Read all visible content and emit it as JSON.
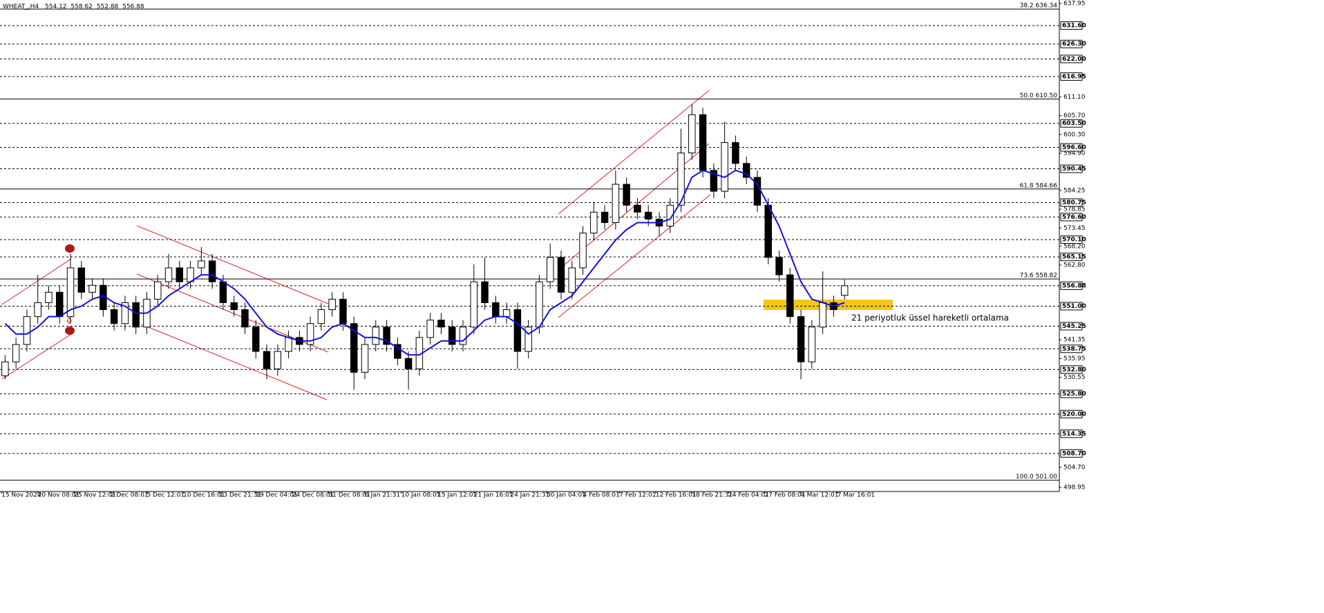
{
  "chart_data": {
    "type": "candlestick",
    "symbol": "WHEAT_,H4",
    "x": [
      1,
      4,
      7,
      10,
      13,
      16,
      19,
      22,
      25,
      28,
      31,
      34,
      37,
      40,
      43,
      46,
      49,
      52,
      55,
      58,
      61,
      64,
      67,
      70,
      73,
      76,
      79,
      82,
      85,
      88,
      91,
      94,
      97,
      100,
      103,
      106,
      109,
      112,
      115,
      118,
      121,
      124,
      127,
      130,
      133,
      136,
      139,
      142,
      145,
      148,
      151,
      154,
      157,
      160,
      163,
      166,
      169,
      172,
      175,
      178,
      181,
      184,
      187,
      190,
      193,
      196,
      199,
      202,
      205,
      208,
      211,
      214,
      217,
      220,
      223,
      226,
      229,
      232
    ],
    "open": [
      531,
      535,
      540,
      548,
      552,
      555,
      548,
      562,
      555,
      557,
      550,
      546,
      552,
      545,
      553,
      558,
      562,
      558,
      562,
      564,
      558,
      552,
      550,
      545,
      538,
      533,
      538,
      542,
      540,
      546,
      550,
      553,
      546,
      532,
      540,
      545,
      540,
      536,
      533,
      542,
      547,
      545,
      540,
      545,
      558,
      552,
      548,
      550,
      538,
      545,
      558,
      565,
      555,
      562,
      572,
      578,
      575,
      586,
      580,
      578,
      576,
      574,
      580,
      595,
      606,
      590,
      584,
      598,
      592,
      588,
      580,
      565,
      560,
      548,
      535,
      545,
      552,
      554.12
    ],
    "high": [
      537,
      542,
      550,
      560,
      557,
      557,
      566,
      564,
      559,
      559,
      552,
      554,
      554,
      555,
      560,
      566,
      564,
      564,
      568,
      566,
      560,
      554,
      552,
      547,
      540,
      540,
      544,
      544,
      548,
      552,
      555,
      555,
      548,
      542,
      547,
      547,
      542,
      538,
      544,
      549,
      549,
      547,
      547,
      563,
      565,
      554,
      552,
      552,
      547,
      560,
      569,
      567,
      564,
      574,
      581,
      580,
      590,
      588,
      582,
      580,
      578,
      582,
      602,
      609,
      608,
      592,
      604,
      600,
      594,
      590,
      582,
      567,
      562,
      550,
      547,
      561,
      554,
      558.62
    ],
    "low": [
      530,
      533,
      538,
      546,
      550,
      546,
      546,
      553,
      553,
      548,
      544,
      544,
      543,
      543,
      551,
      556,
      556,
      556,
      560,
      556,
      550,
      548,
      543,
      536,
      530,
      531,
      536,
      538,
      538,
      544,
      548,
      544,
      527,
      530,
      538,
      538,
      534,
      527,
      531,
      540,
      543,
      538,
      538,
      543,
      550,
      546,
      546,
      533,
      536,
      543,
      556,
      553,
      553,
      560,
      570,
      573,
      573,
      578,
      576,
      574,
      571,
      572,
      578,
      593,
      588,
      582,
      582,
      590,
      586,
      578,
      563,
      558,
      546,
      530,
      533,
      543,
      548,
      552.88
    ],
    "close": [
      535,
      540,
      548,
      552,
      555,
      548,
      562,
      555,
      557,
      550,
      546,
      552,
      545,
      553,
      558,
      562,
      558,
      562,
      564,
      558,
      552,
      550,
      545,
      538,
      533,
      538,
      542,
      540,
      546,
      550,
      553,
      546,
      532,
      540,
      545,
      540,
      536,
      533,
      542,
      547,
      545,
      540,
      545,
      558,
      552,
      548,
      550,
      538,
      545,
      558,
      565,
      555,
      562,
      572,
      578,
      575,
      586,
      580,
      578,
      576,
      574,
      580,
      595,
      606,
      590,
      584,
      598,
      592,
      588,
      580,
      565,
      560,
      548,
      535,
      545,
      552,
      550,
      556.88
    ],
    "ema": {
      "color": "#1010e0",
      "values": [
        546,
        543,
        543,
        545,
        548,
        548,
        550,
        551,
        553,
        554,
        552,
        551,
        549,
        549,
        551,
        554,
        556,
        558,
        560,
        560,
        558,
        556,
        553,
        549,
        545,
        543,
        542,
        541,
        541,
        542,
        545,
        546,
        544,
        542,
        542,
        541,
        539,
        537,
        537,
        539,
        541,
        541,
        541,
        544,
        547,
        548,
        548,
        546,
        543,
        545,
        550,
        552,
        554,
        558,
        562,
        566,
        570,
        573,
        575,
        575,
        575,
        576,
        581,
        588,
        590,
        589,
        588,
        590,
        589,
        586,
        580,
        574,
        566,
        558,
        553,
        552,
        551,
        552
      ]
    },
    "annotation": "21 periyotluk üssel hareketli ortalama",
    "annotation_color": "#1f2fe0",
    "xlim": [
      -0.4,
      291.1
    ],
    "ylim": [
      498.16,
      638.94
    ],
    "xticks": [
      {
        "value": 0,
        "label": "15 Nov 2024"
      },
      {
        "value": 10,
        "label": "20 Nov 08:01"
      },
      {
        "value": 20,
        "label": "25 Nov 12:01"
      },
      {
        "value": 30,
        "label": "2 Dec 08:01"
      },
      {
        "value": 40,
        "label": "5 Dec 12:01"
      },
      {
        "value": 50,
        "label": "10 Dec 16:01"
      },
      {
        "value": 60,
        "label": "13 Dec 21:31"
      },
      {
        "value": 70,
        "label": "19 Dec 04:01"
      },
      {
        "value": 80,
        "label": "24 Dec 08:01"
      },
      {
        "value": 90,
        "label": "31 Dec 08:01"
      },
      {
        "value": 100,
        "label": "6 Jan 21:31"
      },
      {
        "value": 110,
        "label": "10 Jan 08:01"
      },
      {
        "value": 120,
        "label": "15 Jan 12:01"
      },
      {
        "value": 130,
        "label": "21 Jan 16:01"
      },
      {
        "value": 140,
        "label": "24 Jan 21:31"
      },
      {
        "value": 150,
        "label": "30 Jan 04:01"
      },
      {
        "value": 160,
        "label": "4 Feb 08:01"
      },
      {
        "value": 170,
        "label": "7 Feb 12:01"
      },
      {
        "value": 180,
        "label": "12 Feb 16:01"
      },
      {
        "value": 190,
        "label": "18 Feb 21:31"
      },
      {
        "value": 200,
        "label": "24 Feb 04:01"
      },
      {
        "value": 210,
        "label": "27 Feb 08:01"
      },
      {
        "value": 220,
        "label": "4 Mar 12:01"
      },
      {
        "value": 230,
        "label": "7 Mar 16:01"
      }
    ],
    "yticks": [
      637.95,
      {
        "value": 611.1,
        "label": "611.10"
      },
      {
        "value": 605.7,
        "label": "605.70"
      },
      {
        "value": 600.3,
        "label": "600.30"
      },
      {
        "value": 594.9,
        "label": "594.90"
      },
      584.25,
      578.85,
      573.45,
      {
        "value": 568.2,
        "label": "568.20"
      },
      {
        "value": 562.8,
        "label": "562.80"
      },
      541.35,
      535.95,
      530.55,
      {
        "value": 504.7,
        "label": "504.70"
      },
      498.95
    ],
    "price_levels": [
      {
        "value": 631.6,
        "label": "631.60"
      },
      {
        "value": 626.3,
        "label": "626.30"
      },
      {
        "value": 622,
        "label": "622.00"
      },
      616.95,
      {
        "value": 603.5,
        "label": "603.50"
      },
      {
        "value": 596.6,
        "label": "596.60"
      },
      590.45,
      580.75,
      {
        "value": 576.6,
        "label": "576.60"
      },
      {
        "value": 570.1,
        "label": "570.10"
      },
      565.15,
      556.88,
      {
        "value": 551,
        "label": "551.00"
      },
      545.25,
      538.75,
      {
        "value": 532.8,
        "label": "532.80"
      },
      {
        "value": 525.8,
        "label": "525.80"
      },
      {
        "value": 520,
        "label": "520.00"
      },
      514.35,
      {
        "value": 508.7,
        "label": "508.70"
      }
    ],
    "fib_levels": [
      {
        "value": 636.34,
        "label": "38.2 636.34"
      },
      {
        "value": 610.5,
        "label": "50.0 610.50"
      },
      {
        "value": 584.66,
        "label": "61.8 584.66"
      },
      {
        "value": 558.82,
        "label": "73.6 558.82"
      },
      {
        "value": 501,
        "label": "100.0 501.00"
      }
    ],
    "up_color": "#ffffff",
    "down_color": "#000000"
  }
}
